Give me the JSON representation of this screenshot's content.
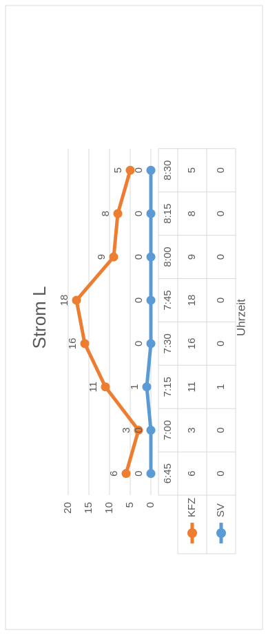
{
  "chart_data": {
    "type": "line",
    "title": "Strom L",
    "xlabel": "Uhrzeit",
    "ylabel": "",
    "categories": [
      "6:45",
      "7:00",
      "7:15",
      "7:30",
      "7:45",
      "8:00",
      "8:15",
      "8:30"
    ],
    "ylim": [
      0,
      20
    ],
    "yticks": [
      0,
      5,
      10,
      15,
      20
    ],
    "grid": true,
    "legend_position": "data-table",
    "series": [
      {
        "name": "KFZ",
        "values": [
          6,
          3,
          11,
          16,
          18,
          9,
          8,
          5
        ],
        "color": "#ED7D31"
      },
      {
        "name": "SV",
        "values": [
          0,
          0,
          1,
          0,
          0,
          0,
          0,
          0
        ],
        "color": "#5B9BD5"
      }
    ]
  }
}
